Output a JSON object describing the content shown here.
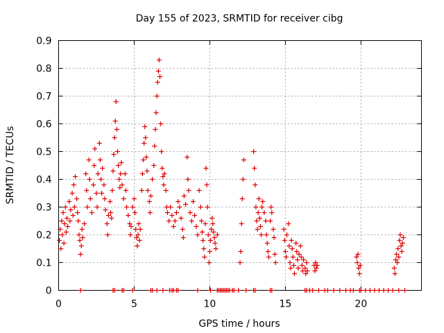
{
  "chart_data": {
    "type": "scatter",
    "title": "Day 155 of 2023, SRMTID for receiver cibg",
    "xlabel": "GPS time / hours",
    "ylabel": "SRMTID / TECUs",
    "xlim": [
      0,
      24
    ],
    "ylim": [
      0,
      0.9
    ],
    "xticks": [
      0,
      5,
      10,
      15,
      20
    ],
    "yticks": [
      0,
      0.1,
      0.2,
      0.3,
      0.4,
      0.5,
      0.6,
      0.7,
      0.8,
      0.9
    ],
    "grid": true,
    "marker": "+",
    "color": "#e00000",
    "series": [
      {
        "name": "SRMTID",
        "points": [
          [
            0.05,
            0.18
          ],
          [
            0.1,
            0.22
          ],
          [
            0.15,
            0.15
          ],
          [
            0.2,
            0.25
          ],
          [
            0.25,
            0.2
          ],
          [
            0.3,
            0.28
          ],
          [
            0.35,
            0.17
          ],
          [
            0.4,
            0.24
          ],
          [
            0.45,
            0.3
          ],
          [
            0.5,
            0.21
          ],
          [
            0.55,
            0.26
          ],
          [
            0.6,
            0.23
          ],
          [
            0.7,
            0.32
          ],
          [
            0.75,
            0.25
          ],
          [
            0.8,
            0.29
          ],
          [
            0.9,
            0.35
          ],
          [
            0.95,
            0.27
          ],
          [
            1.0,
            0.38
          ],
          [
            1.05,
            0.3
          ],
          [
            1.1,
            0.41
          ],
          [
            1.2,
            0.33
          ],
          [
            1.25,
            0.28
          ],
          [
            1.3,
            0.25
          ],
          [
            1.35,
            0.2
          ],
          [
            1.4,
            0.18
          ],
          [
            1.45,
            0.13
          ],
          [
            1.5,
            0.16
          ],
          [
            1.55,
            0.22
          ],
          [
            1.6,
            0.19
          ],
          [
            1.7,
            0.24
          ],
          [
            1.8,
            0.42
          ],
          [
            1.85,
            0.36
          ],
          [
            1.9,
            0.3
          ],
          [
            2.0,
            0.47
          ],
          [
            2.05,
            0.4
          ],
          [
            2.1,
            0.33
          ],
          [
            2.2,
            0.28
          ],
          [
            2.3,
            0.38
          ],
          [
            2.35,
            0.45
          ],
          [
            2.4,
            0.51
          ],
          [
            2.5,
            0.35
          ],
          [
            2.55,
            0.3
          ],
          [
            2.6,
            0.42
          ],
          [
            2.7,
            0.53
          ],
          [
            2.75,
            0.47
          ],
          [
            2.8,
            0.4
          ],
          [
            2.85,
            0.35
          ],
          [
            2.9,
            0.44
          ],
          [
            3.0,
            0.38
          ],
          [
            3.05,
            0.33
          ],
          [
            3.1,
            0.29
          ],
          [
            3.2,
            0.24
          ],
          [
            3.25,
            0.2
          ],
          [
            3.3,
            0.27
          ],
          [
            3.4,
            0.32
          ],
          [
            3.45,
            0.28
          ],
          [
            3.5,
            0.26
          ],
          [
            3.55,
            0.36
          ],
          [
            3.6,
            0.43
          ],
          [
            3.65,
            0.49
          ],
          [
            3.7,
            0.55
          ],
          [
            3.75,
            0.61
          ],
          [
            3.8,
            0.68
          ],
          [
            3.85,
            0.58
          ],
          [
            3.9,
            0.5
          ],
          [
            3.95,
            0.45
          ],
          [
            4.0,
            0.4
          ],
          [
            4.05,
            0.37
          ],
          [
            4.1,
            0.42
          ],
          [
            4.15,
            0.46
          ],
          [
            4.2,
            0.38
          ],
          [
            4.3,
            0.33
          ],
          [
            4.4,
            0.42
          ],
          [
            4.45,
            0.36
          ],
          [
            4.5,
            0.3
          ],
          [
            4.6,
            0.27
          ],
          [
            4.7,
            0.24
          ],
          [
            4.75,
            0.2
          ],
          [
            4.8,
            0.23
          ],
          [
            4.9,
            0.3
          ],
          [
            5.0,
            0.33
          ],
          [
            5.05,
            0.28
          ],
          [
            5.1,
            0.22
          ],
          [
            5.15,
            0.19
          ],
          [
            5.2,
            0.16
          ],
          [
            5.25,
            0.2
          ],
          [
            5.3,
            0.24
          ],
          [
            5.35,
            0.18
          ],
          [
            5.4,
            0.22
          ],
          [
            5.5,
            0.36
          ],
          [
            5.55,
            0.42
          ],
          [
            5.6,
            0.47
          ],
          [
            5.65,
            0.53
          ],
          [
            5.7,
            0.59
          ],
          [
            5.75,
            0.55
          ],
          [
            5.8,
            0.48
          ],
          [
            5.85,
            0.43
          ],
          [
            5.9,
            0.36
          ],
          [
            6.0,
            0.32
          ],
          [
            6.05,
            0.28
          ],
          [
            6.1,
            0.34
          ],
          [
            6.2,
            0.4
          ],
          [
            6.3,
            0.45
          ],
          [
            6.35,
            0.52
          ],
          [
            6.4,
            0.58
          ],
          [
            6.45,
            0.64
          ],
          [
            6.5,
            0.7
          ],
          [
            6.55,
            0.75
          ],
          [
            6.6,
            0.79
          ],
          [
            6.65,
            0.83
          ],
          [
            6.7,
            0.77
          ],
          [
            6.75,
            0.6
          ],
          [
            6.8,
            0.5
          ],
          [
            6.85,
            0.44
          ],
          [
            6.9,
            0.41
          ],
          [
            6.95,
            0.38
          ],
          [
            7.0,
            0.42
          ],
          [
            7.1,
            0.36
          ],
          [
            7.15,
            0.3
          ],
          [
            7.2,
            0.28
          ],
          [
            7.3,
            0.25
          ],
          [
            7.4,
            0.3
          ],
          [
            7.5,
            0.27
          ],
          [
            7.6,
            0.23
          ],
          [
            7.7,
            0.25
          ],
          [
            7.8,
            0.28
          ],
          [
            7.9,
            0.32
          ],
          [
            8.0,
            0.3
          ],
          [
            8.1,
            0.26
          ],
          [
            8.2,
            0.22
          ],
          [
            8.25,
            0.19
          ],
          [
            8.3,
            0.34
          ],
          [
            8.4,
            0.31
          ],
          [
            8.5,
            0.48
          ],
          [
            8.55,
            0.4
          ],
          [
            8.6,
            0.36
          ],
          [
            8.7,
            0.28
          ],
          [
            8.8,
            0.25
          ],
          [
            8.9,
            0.32
          ],
          [
            9.0,
            0.27
          ],
          [
            9.1,
            0.23
          ],
          [
            9.2,
            0.2
          ],
          [
            9.3,
            0.36
          ],
          [
            9.4,
            0.3
          ],
          [
            9.45,
            0.25
          ],
          [
            9.5,
            0.21
          ],
          [
            9.55,
            0.18
          ],
          [
            9.6,
            0.15
          ],
          [
            9.65,
            0.12
          ],
          [
            9.7,
            0.24
          ],
          [
            9.75,
            0.44
          ],
          [
            9.8,
            0.38
          ],
          [
            9.85,
            0.3
          ],
          [
            9.9,
            0.2
          ],
          [
            9.95,
            0.1
          ],
          [
            10.0,
            0.14
          ],
          [
            10.05,
            0.18
          ],
          [
            10.1,
            0.22
          ],
          [
            10.15,
            0.26
          ],
          [
            10.2,
            0.24
          ],
          [
            10.25,
            0.21
          ],
          [
            10.3,
            0.19
          ],
          [
            10.35,
            0.17
          ],
          [
            10.4,
            0.15
          ],
          [
            10.5,
            0.2
          ],
          [
            12.0,
            0.1
          ],
          [
            12.05,
            0.14
          ],
          [
            12.1,
            0.24
          ],
          [
            12.15,
            0.33
          ],
          [
            12.2,
            0.4
          ],
          [
            12.25,
            0.47
          ],
          [
            12.9,
            0.5
          ],
          [
            12.95,
            0.44
          ],
          [
            13.0,
            0.38
          ],
          [
            13.05,
            0.3
          ],
          [
            13.1,
            0.25
          ],
          [
            13.15,
            0.22
          ],
          [
            13.2,
            0.28
          ],
          [
            13.25,
            0.33
          ],
          [
            13.3,
            0.26
          ],
          [
            13.35,
            0.23
          ],
          [
            13.4,
            0.2
          ],
          [
            13.45,
            0.3
          ],
          [
            13.5,
            0.32
          ],
          [
            13.6,
            0.28
          ],
          [
            13.7,
            0.25
          ],
          [
            13.75,
            0.2
          ],
          [
            13.8,
            0.17
          ],
          [
            13.85,
            0.14
          ],
          [
            13.9,
            0.12
          ],
          [
            14.0,
            0.25
          ],
          [
            14.05,
            0.3
          ],
          [
            14.1,
            0.28
          ],
          [
            14.2,
            0.22
          ],
          [
            14.25,
            0.19
          ],
          [
            14.3,
            0.13
          ],
          [
            14.35,
            0.1
          ],
          [
            14.9,
            0.22
          ],
          [
            14.95,
            0.18
          ],
          [
            15.0,
            0.14
          ],
          [
            15.05,
            0.12
          ],
          [
            15.1,
            0.2
          ],
          [
            15.2,
            0.24
          ],
          [
            15.25,
            0.16
          ],
          [
            15.3,
            0.1
          ],
          [
            15.35,
            0.08
          ],
          [
            15.4,
            0.18
          ],
          [
            15.45,
            0.15
          ],
          [
            15.5,
            0.12
          ],
          [
            15.55,
            0.09
          ],
          [
            15.6,
            0.06
          ],
          [
            15.7,
            0.17
          ],
          [
            15.75,
            0.14
          ],
          [
            15.8,
            0.11
          ],
          [
            15.85,
            0.08
          ],
          [
            15.9,
            0.13
          ],
          [
            16.0,
            0.16
          ],
          [
            16.05,
            0.12
          ],
          [
            16.1,
            0.09
          ],
          [
            16.15,
            0.07
          ],
          [
            16.2,
            0.11
          ],
          [
            16.3,
            0.08
          ],
          [
            16.35,
            0.06
          ],
          [
            16.4,
            0.1
          ],
          [
            16.45,
            0.07
          ],
          [
            16.9,
            0.09
          ],
          [
            16.95,
            0.07
          ],
          [
            17.0,
            0.1
          ],
          [
            17.05,
            0.08
          ],
          [
            17.1,
            0.09
          ],
          [
            19.7,
            0.12
          ],
          [
            19.75,
            0.1
          ],
          [
            19.8,
            0.13
          ],
          [
            19.85,
            0.08
          ],
          [
            19.9,
            0.06
          ],
          [
            19.95,
            0.09
          ],
          [
            22.2,
            0.08
          ],
          [
            22.25,
            0.06
          ],
          [
            22.3,
            0.11
          ],
          [
            22.35,
            0.13
          ],
          [
            22.4,
            0.1
          ],
          [
            22.45,
            0.15
          ],
          [
            22.5,
            0.12
          ],
          [
            22.55,
            0.18
          ],
          [
            22.6,
            0.2
          ],
          [
            22.65,
            0.16
          ],
          [
            22.7,
            0.14
          ],
          [
            22.75,
            0.17
          ],
          [
            22.8,
            0.19
          ]
        ],
        "zeros_x": [
          1.45,
          3.6,
          3.7,
          4.2,
          4.3,
          4.9,
          6.1,
          6.2,
          6.5,
          6.9,
          7.35,
          7.5,
          7.6,
          7.8,
          7.9,
          9.2,
          10.05,
          10.5,
          10.6,
          10.7,
          10.8,
          10.9,
          11.0,
          11.1,
          11.2,
          11.3,
          11.5,
          11.6,
          11.9,
          12.4,
          12.9,
          13.0,
          14.0,
          14.1,
          16.3,
          16.4,
          16.6,
          16.8,
          17.2,
          17.6,
          17.8,
          18.2,
          18.6,
          19.0,
          19.3,
          19.5,
          19.9,
          20.0,
          20.3,
          20.6,
          20.9,
          21.2,
          21.5,
          21.8,
          22.1,
          22.5,
          22.9
        ]
      }
    ]
  }
}
